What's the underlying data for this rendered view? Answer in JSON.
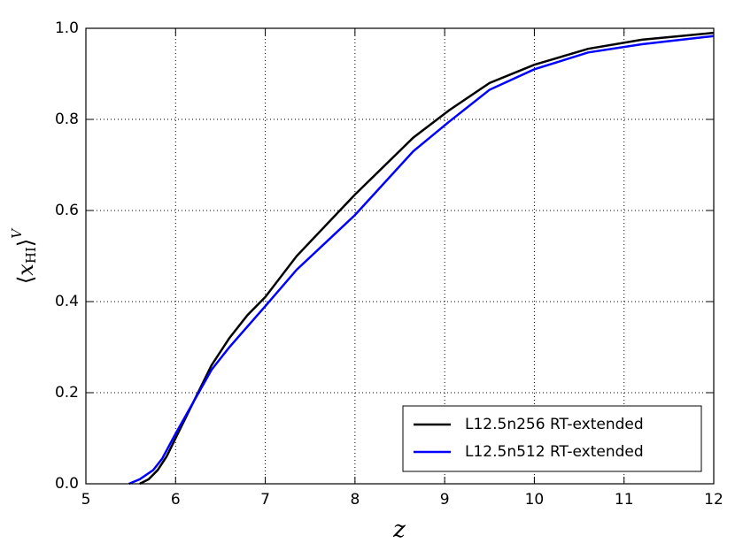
{
  "chart_data": {
    "type": "line",
    "xlabel": "z",
    "ylabel": {
      "open": "⟨",
      "var": "x",
      "sub": "HI",
      "close": "⟩",
      "sup": "V"
    },
    "xlim": [
      5,
      12
    ],
    "xticks": [
      5,
      6,
      7,
      8,
      9,
      10,
      11,
      12
    ],
    "ylim": [
      0,
      1
    ],
    "yticks": [
      {
        "value": 0,
        "label": "0.0"
      },
      0.2,
      0.4,
      0.6,
      0.8,
      {
        "value": 1,
        "label": "1.0"
      }
    ],
    "grid": true,
    "legend": "lower right",
    "series": [
      {
        "name": "L12.5n256 RT-extended",
        "color": "#000000",
        "x": [
          5.6,
          5.7,
          5.8,
          5.9,
          6.0,
          6.2,
          6.4,
          6.6,
          6.8,
          7.0,
          7.35,
          8.0,
          8.65,
          9.05,
          9.5,
          10.0,
          10.6,
          11.2,
          12.0
        ],
        "values": [
          0,
          0.01,
          0.03,
          0.06,
          0.1,
          0.18,
          0.26,
          0.32,
          0.37,
          0.41,
          0.5,
          0.635,
          0.76,
          0.82,
          0.88,
          0.92,
          0.955,
          0.975,
          0.99
        ]
      },
      {
        "name": "L12.5n512 RT-extended",
        "color": "#0000ff",
        "x": [
          5.48,
          5.6,
          5.75,
          5.85,
          6.0,
          6.2,
          6.4,
          6.6,
          7.0,
          7.35,
          8.0,
          8.65,
          9.05,
          9.5,
          10.0,
          10.6,
          11.2,
          12.0
        ],
        "values": [
          0,
          0.01,
          0.03,
          0.055,
          0.11,
          0.18,
          0.25,
          0.3,
          0.39,
          0.47,
          0.59,
          0.73,
          0.795,
          0.865,
          0.91,
          0.947,
          0.965,
          0.983
        ]
      }
    ]
  }
}
